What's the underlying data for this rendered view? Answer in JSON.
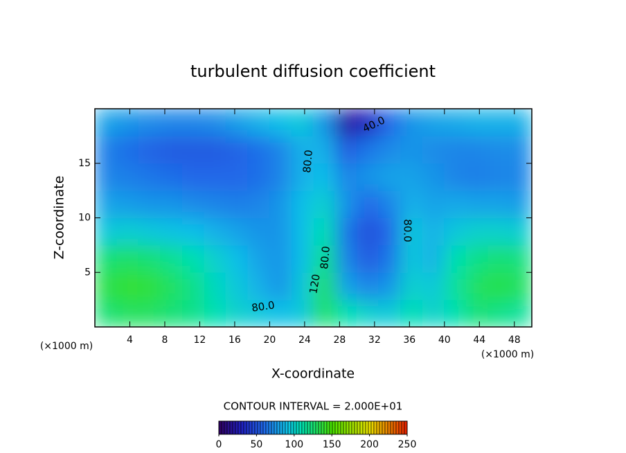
{
  "chart_data": {
    "type": "contour",
    "title": "turbulent diffusion coefficient",
    "xlabel": "X-coordinate",
    "ylabel": "Z-coordinate",
    "xunit": "(×1000 m)",
    "yunit": "(×1000 m)",
    "contour_interval_text": "CONTOUR INTERVAL = 2.000E+01",
    "xlim": [
      0,
      50
    ],
    "ylim": [
      0,
      20
    ],
    "xticks": [
      4,
      8,
      12,
      16,
      20,
      24,
      28,
      32,
      36,
      40,
      44,
      48
    ],
    "yticks": [
      5,
      10,
      15
    ],
    "x": [
      1.25,
      3.75,
      6.25,
      8.75,
      11.25,
      13.75,
      16.25,
      18.75,
      21.25,
      23.75,
      26.25,
      28.75,
      31.25,
      33.75,
      36.25,
      38.75,
      41.25,
      43.75,
      46.25,
      48.75
    ],
    "y": [
      1.25,
      3.75,
      6.25,
      8.75,
      11.25,
      13.75,
      16.25,
      18.75
    ],
    "z": [
      [
        125,
        130,
        130,
        125,
        120,
        110,
        100,
        95,
        90,
        95,
        130,
        110,
        100,
        95,
        110,
        100,
        110,
        125,
        120,
        115
      ],
      [
        135,
        140,
        138,
        130,
        120,
        105,
        95,
        85,
        75,
        95,
        130,
        80,
        70,
        75,
        100,
        95,
        115,
        130,
        135,
        130
      ],
      [
        125,
        128,
        125,
        118,
        110,
        100,
        90,
        80,
        75,
        90,
        120,
        70,
        55,
        65,
        95,
        85,
        110,
        120,
        125,
        122
      ],
      [
        95,
        98,
        95,
        92,
        90,
        85,
        80,
        75,
        75,
        90,
        110,
        65,
        50,
        60,
        95,
        85,
        95,
        100,
        100,
        98
      ],
      [
        80,
        78,
        75,
        75,
        72,
        70,
        68,
        70,
        75,
        90,
        100,
        75,
        60,
        70,
        85,
        80,
        82,
        80,
        80,
        78
      ],
      [
        70,
        68,
        65,
        62,
        60,
        60,
        60,
        62,
        70,
        85,
        90,
        70,
        75,
        80,
        80,
        75,
        70,
        68,
        70,
        70
      ],
      [
        68,
        62,
        58,
        55,
        55,
        55,
        58,
        62,
        70,
        85,
        85,
        55,
        65,
        72,
        75,
        72,
        70,
        70,
        72,
        72
      ],
      [
        80,
        75,
        72,
        70,
        70,
        72,
        78,
        85,
        90,
        95,
        75,
        20,
        30,
        60,
        75,
        80,
        82,
        85,
        85,
        85
      ]
    ],
    "contour_labels": [
      "80.0",
      "40.0",
      "80.0",
      "80.0",
      "120",
      "80.0"
    ],
    "colorbar_lim": [
      0,
      250
    ],
    "colorbar_ticks": [
      0,
      50,
      100,
      150,
      200,
      250
    ],
    "colorscale": [
      [
        0,
        "#300060"
      ],
      [
        30,
        "#2020c0"
      ],
      [
        60,
        "#2068e8"
      ],
      [
        90,
        "#10c0e8"
      ],
      [
        110,
        "#00e0b0"
      ],
      [
        130,
        "#20e060"
      ],
      [
        150,
        "#48e000"
      ],
      [
        200,
        "#e8e000"
      ],
      [
        250,
        "#e82000"
      ]
    ]
  }
}
